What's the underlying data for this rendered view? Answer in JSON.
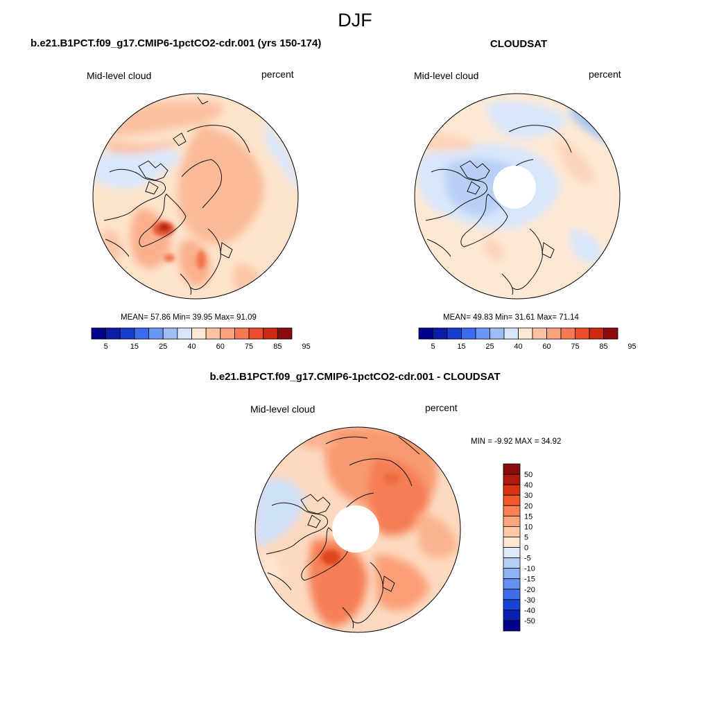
{
  "page": {
    "season": "DJF"
  },
  "panels": [
    {
      "id": "model",
      "title": "b.e21.B1PCT.f09_g17.CMIP6-1pctCO2-cdr.001 (yrs 150-174)",
      "variable": "Mid-level cloud",
      "units": "percent",
      "stats": "MEAN=  57.86  Min=  39.95  Max=  91.09",
      "colorbar_labels": [
        "5",
        "15",
        "25",
        "40",
        "60",
        "75",
        "85",
        "95"
      ]
    },
    {
      "id": "obs",
      "title": "CLOUDSAT",
      "variable": "Mid-level cloud",
      "units": "percent",
      "stats": "MEAN=  49.83  Min=  31.61  Max=  71.14",
      "colorbar_labels": [
        "5",
        "15",
        "25",
        "40",
        "60",
        "75",
        "85",
        "95"
      ]
    }
  ],
  "difference": {
    "title": "b.e21.B1PCT.f09_g17.CMIP6-1pctCO2-cdr.001 - CLOUDSAT",
    "variable": "Mid-level cloud",
    "units": "percent",
    "stats": "MIN =  -9.92 MAX =  34.92",
    "colorbar_labels": [
      "50",
      "40",
      "30",
      "20",
      "15",
      "10",
      "5",
      "0",
      "-5",
      "-10",
      "-15",
      "-20",
      "-30",
      "-40",
      "-50"
    ]
  },
  "colors": {
    "abs_scale": [
      "#00008b",
      "#0b1fa6",
      "#1a3fd0",
      "#3a6cf0",
      "#6a95f2",
      "#9ebcf5",
      "#d6e6fb",
      "#ffe8d2",
      "#fcc3a3",
      "#fca27e",
      "#f87a55",
      "#ec4d2c",
      "#cc2a12",
      "#8b0b0b"
    ],
    "diff_scale": [
      "#8b0b0b",
      "#b1190b",
      "#d9320f",
      "#f25a2c",
      "#fb8054",
      "#fca57f",
      "#fdcaa8",
      "#fde7d3",
      "#deeafb",
      "#b6cff7",
      "#8eb2f3",
      "#6690f0",
      "#3f6ded",
      "#1a43d8",
      "#0a20b0",
      "#00008b"
    ]
  }
}
